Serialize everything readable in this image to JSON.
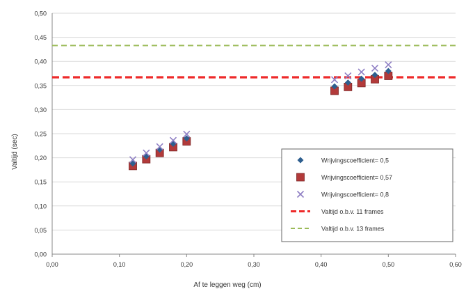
{
  "chart_data": {
    "type": "scatter",
    "title": "",
    "xlabel": "Af te leggen weg (cm)",
    "ylabel": "Valtijd (sec)",
    "xlim": [
      0,
      0.6
    ],
    "ylim": [
      0,
      0.5
    ],
    "x_ticks": [
      "0,00",
      "0,10",
      "0,20",
      "0,30",
      "0,40",
      "0,50",
      "0,60"
    ],
    "y_ticks": [
      "0,00",
      "0,05",
      "0,10",
      "0,15",
      "0,20",
      "0,25",
      "0,30",
      "0,35",
      "0,40",
      "0,45",
      "0,50"
    ],
    "grid": true,
    "legend_position": "bottom-right",
    "series": [
      {
        "name": "Wrijvingscoefficient= 0,5",
        "marker": "diamond",
        "color": "#2e5f8f",
        "x": [
          0.12,
          0.14,
          0.16,
          0.18,
          0.2,
          0.42,
          0.44,
          0.46,
          0.48,
          0.5
        ],
        "y": [
          0.188,
          0.203,
          0.217,
          0.229,
          0.24,
          0.348,
          0.356,
          0.364,
          0.372,
          0.38
        ]
      },
      {
        "name": "Wrijvingscoefficient= 0,57",
        "marker": "square",
        "color": "#b23a3a",
        "x": [
          0.12,
          0.14,
          0.16,
          0.18,
          0.2,
          0.42,
          0.44,
          0.46,
          0.48,
          0.5
        ],
        "y": [
          0.183,
          0.197,
          0.21,
          0.222,
          0.234,
          0.339,
          0.347,
          0.355,
          0.363,
          0.37
        ]
      },
      {
        "name": "Wrijvingscoefficient= 0,8",
        "marker": "x",
        "color": "#8f7fc4",
        "x": [
          0.12,
          0.14,
          0.16,
          0.18,
          0.2,
          0.42,
          0.44,
          0.46,
          0.48,
          0.5
        ],
        "y": [
          0.196,
          0.21,
          0.223,
          0.236,
          0.249,
          0.362,
          0.37,
          0.378,
          0.386,
          0.393
        ]
      },
      {
        "name": "Valtijd o.b.v. 11 frames",
        "type": "hline",
        "style": "dashed",
        "color": "#ee2a2a",
        "y": 0.367
      },
      {
        "name": "Valtijd o.b.v. 13 frames",
        "type": "hline",
        "style": "dashed",
        "color": "#9bbb59",
        "y": 0.433
      }
    ]
  }
}
